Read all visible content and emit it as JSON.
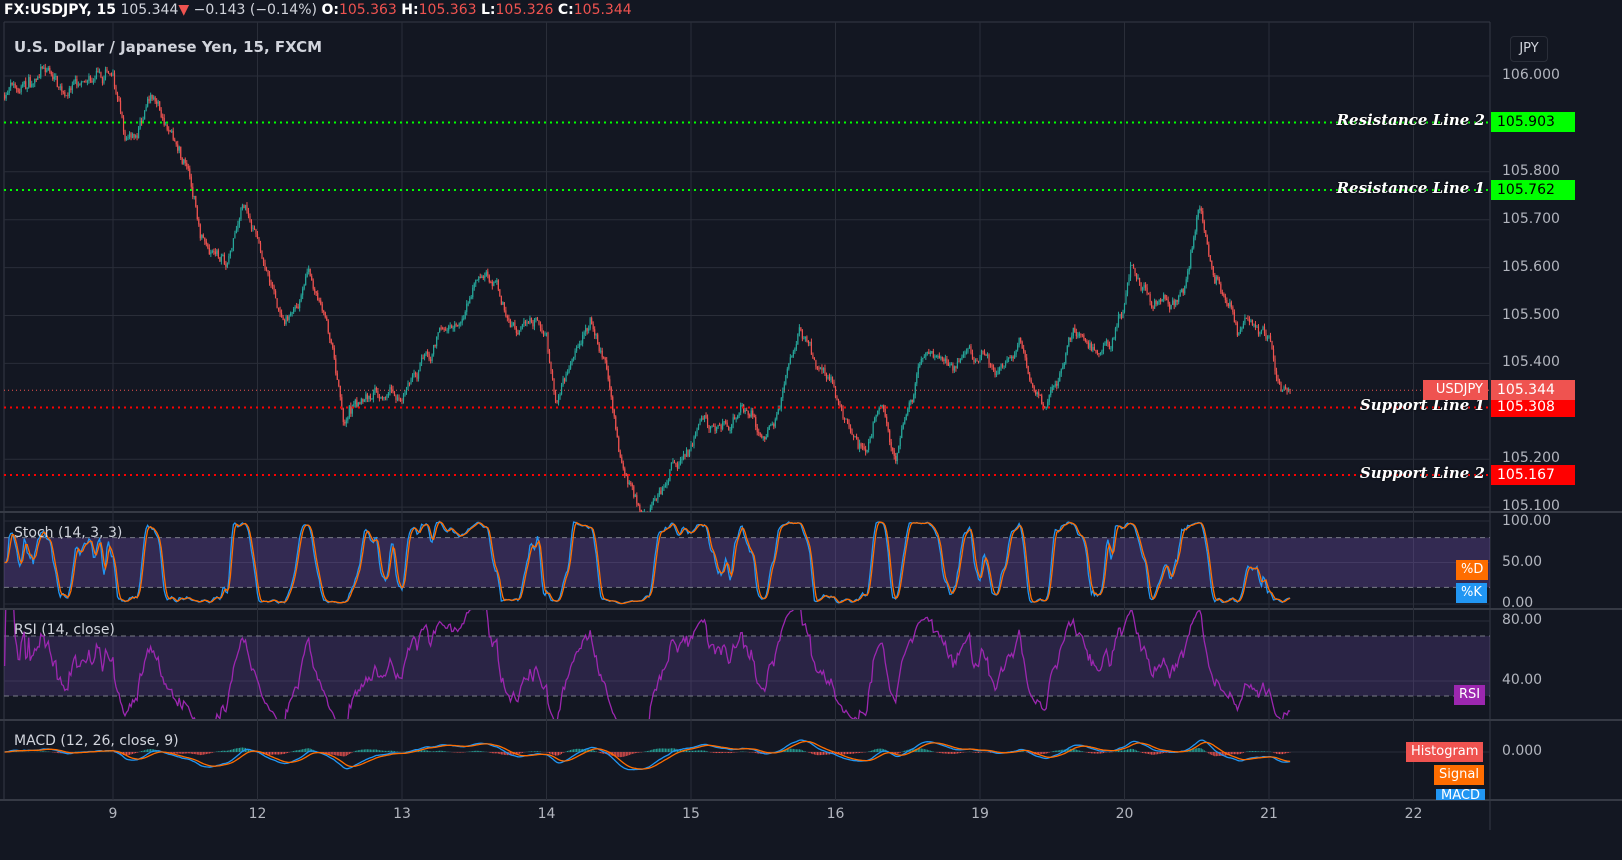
{
  "header": {
    "symbol": "FX:USDJPY, 15",
    "last": "105.344",
    "direction_icon": "triangle-down",
    "change": "−0.143 (−0.14%)",
    "o_label": "O:",
    "o": "105.363",
    "h_label": "H:",
    "h": "105.363",
    "l_label": "L:",
    "l": "105.326",
    "c_label": "C:",
    "c": "105.344"
  },
  "chart_title": "U.S. Dollar / Japanese Yen, 15, FXCM",
  "currency_button": "JPY",
  "colors": {
    "background": "#131722",
    "grid": "#2a2e39",
    "up": "#26a69a",
    "down": "#ef5350",
    "resistance": "#00ff00",
    "support": "#ff0000",
    "stoch_k": "#2196f3",
    "stoch_d": "#ff6d00",
    "rsi": "#9c27b0",
    "macd": "#2196f3",
    "signal": "#ff6d00",
    "hist_up": "#26a69a",
    "hist_down": "#ef5350",
    "band_fill": "#7e57c2"
  },
  "chart_data": {
    "type": "candlestick",
    "interval": "15",
    "x_ticks": [
      "9",
      "12",
      "13",
      "14",
      "15",
      "16",
      "19",
      "20",
      "21",
      "22"
    ],
    "y_ticks": [
      "106.000",
      "105.800",
      "105.700",
      "105.600",
      "105.500",
      "105.400",
      "105.200",
      "105.100"
    ],
    "ylim": [
      105.09,
      106.12
    ],
    "grid": true,
    "price_path": [
      {
        "day": "9",
        "hour": -18,
        "price": 105.96
      },
      {
        "day": "9",
        "hour": -12,
        "price": 106.0
      },
      {
        "day": "9",
        "hour": -5.5,
        "price": 105.97
      },
      {
        "day": "9",
        "hour": 0,
        "price": 106.01
      },
      {
        "day": "9",
        "hour": 2,
        "price": 105.85
      },
      {
        "day": "9",
        "hour": 7,
        "price": 105.95
      },
      {
        "day": "9",
        "hour": 12,
        "price": 105.82
      },
      {
        "day": "9",
        "hour": 14.5,
        "price": 105.68
      },
      {
        "day": "9",
        "hour": 19,
        "price": 105.61
      },
      {
        "day": "9",
        "hour": 21.6,
        "price": 105.74
      },
      {
        "day": "12",
        "hour": 0,
        "price": 105.65
      },
      {
        "day": "12",
        "hour": 4.5,
        "price": 105.47
      },
      {
        "day": "12",
        "hour": 8.6,
        "price": 105.58
      },
      {
        "day": "12",
        "hour": 12,
        "price": 105.45
      },
      {
        "day": "12",
        "hour": 14.4,
        "price": 105.28
      },
      {
        "day": "12",
        "hour": 18.6,
        "price": 105.35
      },
      {
        "day": "13",
        "hour": 0,
        "price": 105.33
      },
      {
        "day": "13",
        "hour": 4.8,
        "price": 105.41
      },
      {
        "day": "13",
        "hour": 9.8,
        "price": 105.5
      },
      {
        "day": "13",
        "hour": 14,
        "price": 105.59
      },
      {
        "day": "13",
        "hour": 18,
        "price": 105.49
      },
      {
        "day": "14",
        "hour": 0,
        "price": 105.47
      },
      {
        "day": "14",
        "hour": 1.5,
        "price": 105.33
      },
      {
        "day": "14",
        "hour": 4.8,
        "price": 105.44
      },
      {
        "day": "14",
        "hour": 7.3,
        "price": 105.48
      },
      {
        "day": "14",
        "hour": 9.8,
        "price": 105.38
      },
      {
        "day": "14",
        "hour": 12.3,
        "price": 105.2
      },
      {
        "day": "14",
        "hour": 15.6,
        "price": 105.11
      },
      {
        "day": "14",
        "hour": 19,
        "price": 105.13
      },
      {
        "day": "15",
        "hour": 0,
        "price": 105.23
      },
      {
        "day": "15",
        "hour": 1.7,
        "price": 105.28
      },
      {
        "day": "15",
        "hour": 6.6,
        "price": 105.27
      },
      {
        "day": "15",
        "hour": 9,
        "price": 105.32
      },
      {
        "day": "15",
        "hour": 12.4,
        "price": 105.24
      },
      {
        "day": "15",
        "hour": 15,
        "price": 105.34
      },
      {
        "day": "15",
        "hour": 18,
        "price": 105.47
      },
      {
        "day": "15",
        "hour": 21.4,
        "price": 105.4
      },
      {
        "day": "16",
        "hour": 0,
        "price": 105.33
      },
      {
        "day": "16",
        "hour": 2.5,
        "price": 105.24
      },
      {
        "day": "16",
        "hour": 5,
        "price": 105.21
      },
      {
        "day": "16",
        "hour": 7.5,
        "price": 105.3
      },
      {
        "day": "16",
        "hour": 10,
        "price": 105.22
      },
      {
        "day": "16",
        "hour": 12.5,
        "price": 105.32
      },
      {
        "day": "16",
        "hour": 15,
        "price": 105.43
      },
      {
        "day": "16",
        "hour": 19,
        "price": 105.4
      },
      {
        "day": "19",
        "hour": 0,
        "price": 105.43
      },
      {
        "day": "19",
        "hour": 3,
        "price": 105.36
      },
      {
        "day": "19",
        "hour": 6.6,
        "price": 105.45
      },
      {
        "day": "19",
        "hour": 10.8,
        "price": 105.31
      },
      {
        "day": "19",
        "hour": 13,
        "price": 105.36
      },
      {
        "day": "19",
        "hour": 15.6,
        "price": 105.46
      },
      {
        "day": "19",
        "hour": 19.7,
        "price": 105.42
      },
      {
        "day": "19",
        "hour": 22,
        "price": 105.45
      },
      {
        "day": "20",
        "hour": 0,
        "price": 105.51
      },
      {
        "day": "20",
        "hour": 1,
        "price": 105.6
      },
      {
        "day": "20",
        "hour": 4.3,
        "price": 105.53
      },
      {
        "day": "20",
        "hour": 7.6,
        "price": 105.52
      },
      {
        "day": "20",
        "hour": 10,
        "price": 105.56
      },
      {
        "day": "20",
        "hour": 12.6,
        "price": 105.73
      },
      {
        "day": "20",
        "hour": 15,
        "price": 105.58
      },
      {
        "day": "20",
        "hour": 17.5,
        "price": 105.53
      },
      {
        "day": "20",
        "hour": 19,
        "price": 105.45
      },
      {
        "day": "20",
        "hour": 21.6,
        "price": 105.5
      },
      {
        "day": "21",
        "hour": 0,
        "price": 105.45
      },
      {
        "day": "21",
        "hour": 2,
        "price": 105.36
      },
      {
        "day": "21",
        "hour": 3.6,
        "price": 105.344
      }
    ],
    "horizontal_lines": [
      {
        "label": "Resistance Line 2",
        "price": "105.903",
        "kind": "resistance"
      },
      {
        "label": "Resistance Line 1",
        "price": "105.762",
        "kind": "resistance"
      },
      {
        "label": "Support Line 1",
        "price": "105.308",
        "kind": "support"
      },
      {
        "label": "Support Line 2",
        "price": "105.167",
        "kind": "support"
      }
    ],
    "last_price": {
      "label": "USDJPY",
      "price": "105.344"
    },
    "indicators": {
      "stoch": {
        "title": "Stoch (14, 3, 3)",
        "ticks": [
          "100.00",
          "50.00",
          "0.00"
        ],
        "bands": [
          20,
          80
        ],
        "labels": [
          "%D",
          "%K"
        ]
      },
      "rsi": {
        "title": "RSI (14, close)",
        "ticks": [
          "80.00",
          "40.00"
        ],
        "bands": [
          30,
          70
        ],
        "label": "RSI"
      },
      "macd": {
        "title": "MACD (12, 26, close, 9)",
        "ticks": [
          "0.000"
        ],
        "labels": [
          "Histogram",
          "Signal",
          "MACD"
        ]
      }
    }
  }
}
